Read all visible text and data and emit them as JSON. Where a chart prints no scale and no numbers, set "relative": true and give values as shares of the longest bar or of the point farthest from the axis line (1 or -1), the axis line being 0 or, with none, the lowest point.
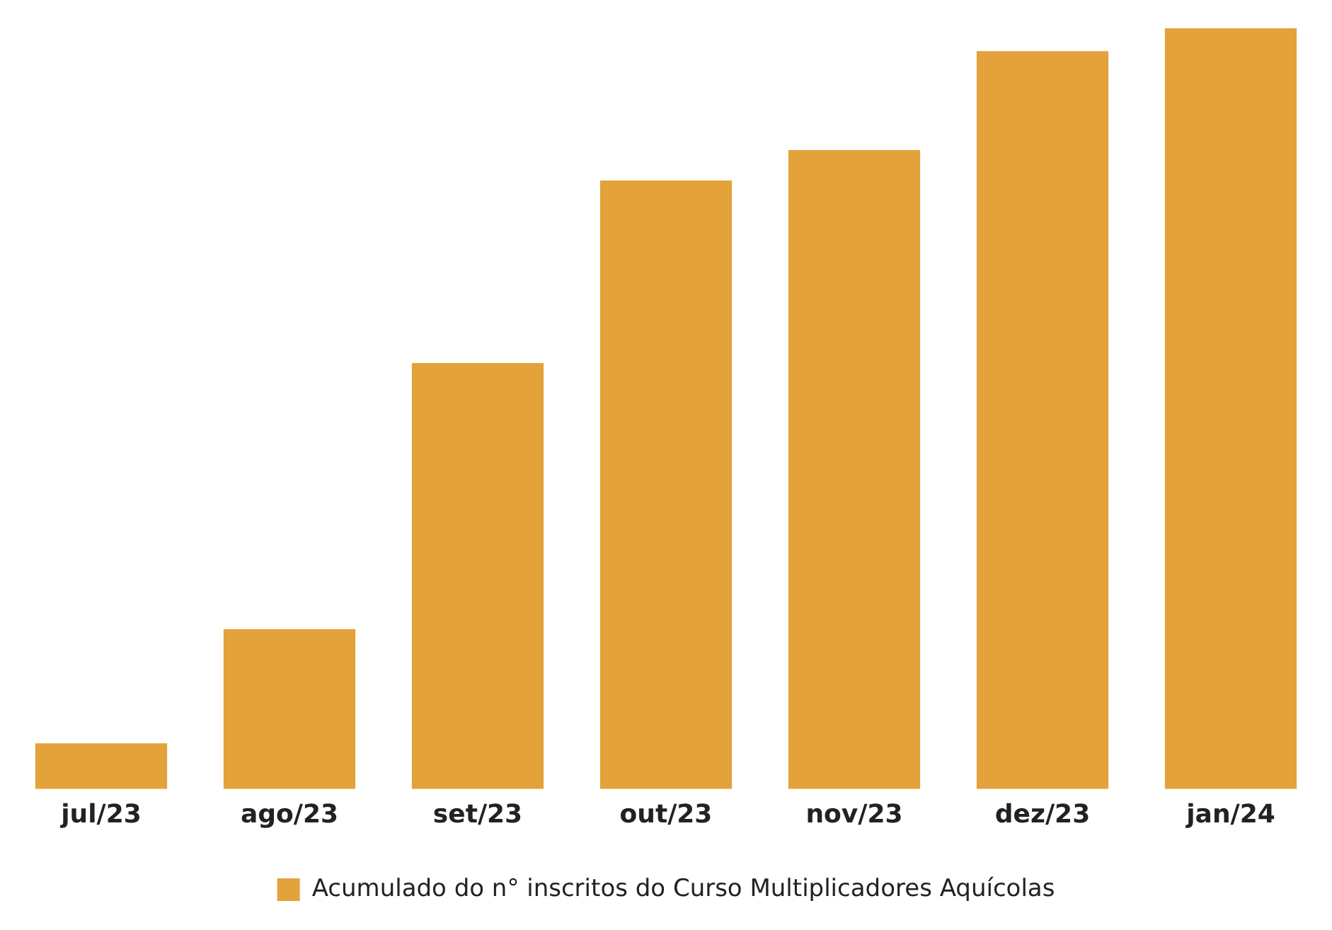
{
  "chart_data": {
    "type": "bar",
    "relative": true,
    "legend": "bottom",
    "grid": false,
    "categories": [
      "jul/23",
      "ago/23",
      "set/23",
      "out/23",
      "nov/23",
      "dez/23",
      "jan/24"
    ],
    "series": [
      {
        "name": "Acumulado do n° inscritos do Curso Multiplicadores Aquícolas",
        "color": "#e3a23a",
        "values": [
          0.06,
          0.21,
          0.56,
          0.8,
          0.84,
          0.97,
          1
        ]
      }
    ]
  }
}
